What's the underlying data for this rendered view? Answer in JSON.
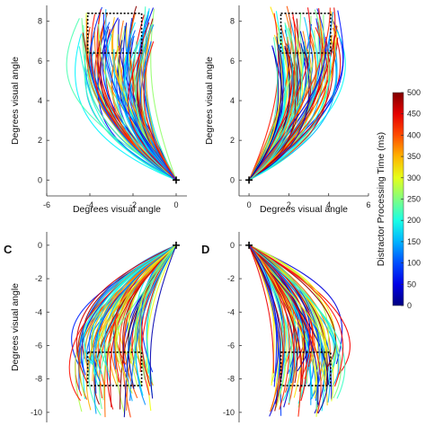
{
  "chart_data": {
    "type": "line",
    "colorbar": {
      "label": "Distractor Processing Time (ms)",
      "ticks": [
        0,
        50,
        100,
        150,
        200,
        250,
        300,
        350,
        400,
        450,
        500
      ],
      "range": [
        0,
        500
      ],
      "colormap": "jet"
    },
    "panels": [
      {
        "id": "A",
        "letter": "",
        "xlabel": "Degrees visual angle",
        "ylabel": "Degrees visual angle",
        "xlim": [
          -6,
          0.5
        ],
        "ylim": [
          -0.8,
          8.8
        ],
        "xticks": [
          -6,
          -4,
          -2,
          0
        ],
        "yticks": [
          0,
          2,
          4,
          6,
          8
        ],
        "origin": [
          0,
          0
        ],
        "target_box": {
          "x": [
            -4.1,
            -1.6
          ],
          "y": [
            6.4,
            8.4
          ]
        },
        "trajectories": {
          "count": 90,
          "end_x_range": [
            -4.5,
            -1.0
          ],
          "end_y_range": [
            6.5,
            8.8
          ],
          "curvature": "bows toward negative x"
        }
      },
      {
        "id": "B",
        "letter": "",
        "xlabel": "Degrees visual angle",
        "ylabel": "Degrees visual angle",
        "xlim": [
          -0.5,
          6
        ],
        "ylim": [
          -0.8,
          8.8
        ],
        "xticks": [
          0,
          2,
          4,
          6
        ],
        "yticks": [
          0,
          2,
          4,
          6,
          8
        ],
        "origin": [
          0,
          0
        ],
        "target_box": {
          "x": [
            1.6,
            4.1
          ],
          "y": [
            6.4,
            8.4
          ]
        },
        "trajectories": {
          "count": 90,
          "end_x_range": [
            1.0,
            4.5
          ],
          "end_y_range": [
            6.5,
            8.8
          ],
          "curvature": "bows toward positive x"
        }
      },
      {
        "id": "C",
        "letter": "C",
        "xlabel": "",
        "ylabel": "Degrees visual angle",
        "xlim": [
          -6,
          0.5
        ],
        "ylim": [
          -10.6,
          0.8
        ],
        "xticks": [],
        "yticks": [
          0,
          -2,
          -4,
          -6,
          -8,
          -10
        ],
        "origin": [
          0,
          0
        ],
        "target_box": {
          "x": [
            -4.1,
            -1.6
          ],
          "y": [
            -8.4,
            -6.4
          ]
        },
        "trajectories": {
          "count": 90,
          "end_x_range": [
            -4.5,
            -1.0
          ],
          "end_y_range": [
            -10.3,
            -6.8
          ],
          "curvature": "bows toward negative x"
        }
      },
      {
        "id": "D",
        "letter": "D",
        "xlabel": "",
        "ylabel": "",
        "xlim": [
          -0.5,
          6
        ],
        "ylim": [
          -10.6,
          0.8
        ],
        "xticks": [],
        "yticks": [
          0,
          -2,
          -4,
          -6,
          -8,
          -10
        ],
        "origin": [
          0,
          0
        ],
        "target_box": {
          "x": [
            1.6,
            4.1
          ],
          "y": [
            -8.4,
            -6.4
          ]
        },
        "trajectories": {
          "count": 90,
          "end_x_range": [
            1.0,
            4.5
          ],
          "end_y_range": [
            -10.3,
            -6.8
          ],
          "curvature": "bows toward positive x"
        }
      }
    ]
  }
}
